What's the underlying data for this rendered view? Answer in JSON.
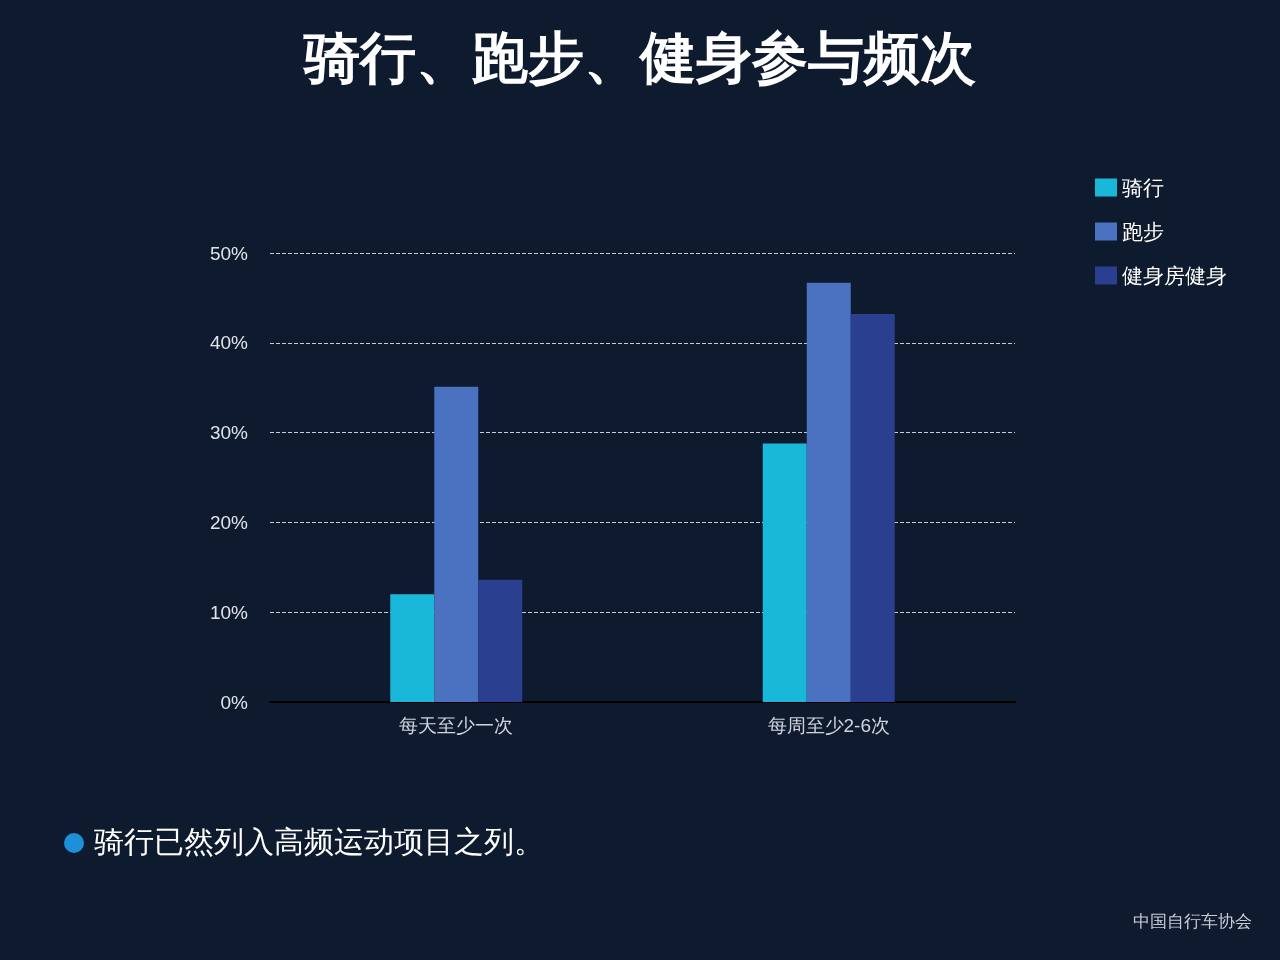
{
  "chart_data": {
    "type": "bar",
    "title": "骑行、跑步、健身参与频次",
    "categories": [
      "每天至少一次",
      "每周至少2-6次"
    ],
    "series": [
      {
        "name": "骑行",
        "color": "#1ab8d8",
        "values": [
          12.0,
          28.8
        ]
      },
      {
        "name": "跑步",
        "color": "#4a72c0",
        "values": [
          35.1,
          46.7
        ]
      },
      {
        "name": "健身房健身",
        "color": "#2a3f8f",
        "values": [
          13.6,
          43.2
        ]
      }
    ],
    "ylim": [
      0,
      50
    ],
    "yticks": [
      {
        "value": 0,
        "label": "0%"
      },
      {
        "value": 10,
        "label": "10%"
      },
      {
        "value": 20,
        "label": "20%"
      },
      {
        "value": 30,
        "label": "30%"
      },
      {
        "value": 40,
        "label": "40%"
      },
      {
        "value": 50,
        "label": "50%"
      }
    ],
    "grid": "y",
    "legend": "top right",
    "annotations": [
      "骑行已然列入高频运动项目之列。",
      "中国自行车协会"
    ]
  }
}
